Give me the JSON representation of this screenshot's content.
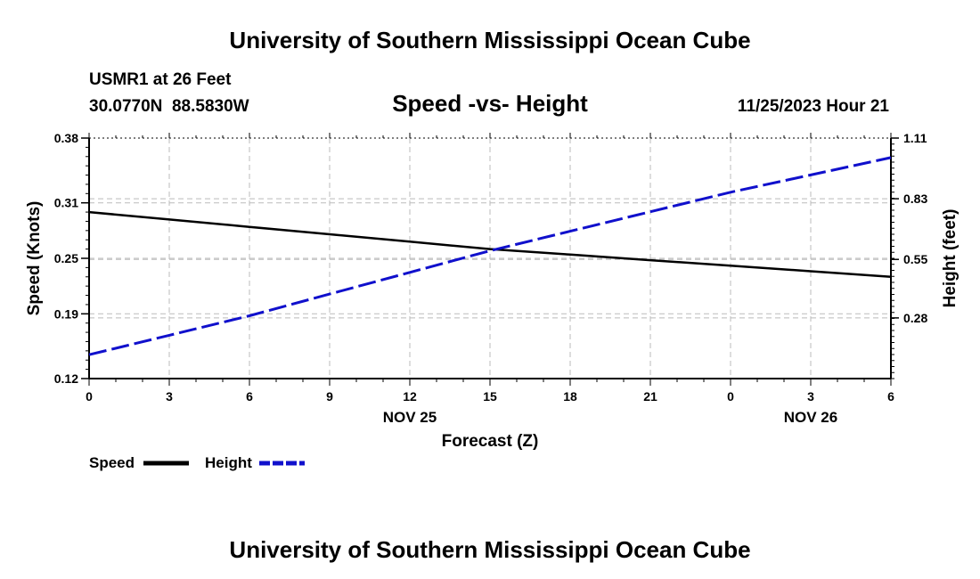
{
  "header": {
    "title": "University of Southern Mississippi Ocean Cube",
    "station": "USMR1 at 26 Feet",
    "coords": "30.0770N  88.5830W",
    "datetime": "11/25/2023 Hour 21"
  },
  "footer": {
    "title": "University of Southern Mississippi Ocean Cube"
  },
  "legend": {
    "speed_label": "Speed",
    "height_label": "Height"
  },
  "chart_data": {
    "type": "line",
    "title": "Speed -vs- Height",
    "xlabel": "Forecast (Z)",
    "x": [
      0,
      3,
      6,
      9,
      12,
      15,
      18,
      21,
      24,
      27,
      30
    ],
    "x_tick_labels": [
      "0",
      "3",
      "6",
      "9",
      "12",
      "15",
      "18",
      "21",
      "0",
      "3",
      "6"
    ],
    "date_labels": [
      {
        "x": 12,
        "label": "NOV 25"
      },
      {
        "x": 27,
        "label": "NOV 26"
      }
    ],
    "left_axis": {
      "label": "Speed (Knots)",
      "ylim": [
        0.12,
        0.38
      ],
      "ticks": [
        0.12,
        0.19,
        0.25,
        0.31,
        0.38
      ],
      "tick_labels": [
        "0.12",
        "0.19",
        "0.25",
        "0.31",
        "0.38"
      ]
    },
    "right_axis": {
      "label": "Height (feet)",
      "ylim": [
        0.0,
        1.11
      ],
      "ticks": [
        0.28,
        0.55,
        0.83,
        1.11
      ],
      "tick_labels": [
        "0.28",
        "0.55",
        "0.83",
        "1.11"
      ]
    },
    "series": [
      {
        "name": "Speed",
        "axis": "left",
        "color": "#000000",
        "dash": "solid",
        "values": [
          0.3,
          0.292,
          0.284,
          0.276,
          0.268,
          0.26,
          0.254,
          0.248,
          0.242,
          0.236,
          0.23
        ]
      },
      {
        "name": "Height",
        "axis": "right",
        "color": "#1010cc",
        "dash": "dashed",
        "values": [
          0.11,
          0.2,
          0.29,
          0.39,
          0.49,
          0.59,
          0.68,
          0.77,
          0.86,
          0.94,
          1.02
        ]
      }
    ],
    "grid": true
  }
}
